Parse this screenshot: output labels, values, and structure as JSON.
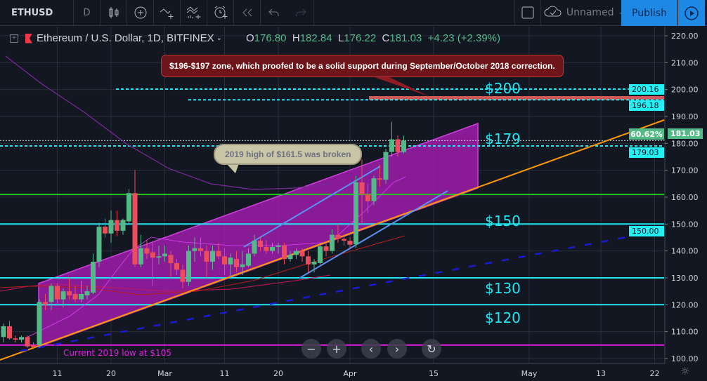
{
  "toolbar": {
    "symbol": "ETHUSD",
    "interval": "D",
    "icons": [
      "candles-icon",
      "add-indicator-icon",
      "compare-icon",
      "indicators-icon",
      "alert-icon",
      "replay-icon",
      "undo-icon",
      "redo-icon"
    ],
    "layout_name": "Unnamed",
    "publish_label": "Publish"
  },
  "legend": {
    "title": "Ethereum / U.S. Dollar, 1D, BITFINEX",
    "o_label": "O",
    "o": "176.80",
    "h_label": "H",
    "h": "182.84",
    "l_label": "L",
    "l": "176.22",
    "c_label": "C",
    "c": "181.03",
    "change": "+4.23 (+2.39%)"
  },
  "colors": {
    "up": "#53b987",
    "down": "#eb4d5c",
    "background": "#131722",
    "publish": "#1e88e5",
    "channel": "#a41cb0",
    "level": "#22e6f0"
  },
  "annotations": {
    "red_callout": "$196-$197 zone, which proofed to be a solid support during September/October 2018 correction.",
    "beige_callout": "2019 high of $161.5 was broken",
    "low_note": "Current 2019 low at $105",
    "levels": [
      {
        "label": "$200",
        "price": 200.16
      },
      {
        "label": "$179",
        "price": 179.03
      },
      {
        "label": "$150",
        "price": 150
      },
      {
        "label": "$130",
        "price": 130
      },
      {
        "label": "$120",
        "price": 120
      }
    ]
  },
  "price_badges": {
    "p200": "200.16",
    "p196": "196.18",
    "last": "181.03",
    "p179": "179.03",
    "p150": "150.00",
    "pct": "60.62%"
  },
  "chart_data": {
    "type": "candlestick",
    "ylim": [
      98,
      224
    ],
    "y_ticks": [
      "220.00",
      "210.00",
      "200.00",
      "190.00",
      "180.00",
      "170.00",
      "160.00",
      "150.00",
      "140.00",
      "130.00",
      "120.00",
      "110.00",
      "100.00"
    ],
    "x_ticks": [
      {
        "label": "11",
        "date": "2019-02-11"
      },
      {
        "label": "20",
        "date": "2019-02-20"
      },
      {
        "label": "Mar",
        "date": "2019-03-01"
      },
      {
        "label": "11",
        "date": "2019-03-11"
      },
      {
        "label": "20",
        "date": "2019-03-20"
      },
      {
        "label": "Apr",
        "date": "2019-04-01"
      },
      {
        "label": "15",
        "date": "2019-04-15"
      },
      {
        "label": "May",
        "date": "2019-05-01"
      },
      {
        "label": "13",
        "date": "2019-05-13"
      },
      {
        "label": "22",
        "date": "2019-05-22"
      }
    ],
    "grid": true,
    "horizontal_lines": [
      {
        "price": 200.16,
        "style": "dashed",
        "color": "#22e6f0"
      },
      {
        "price": 196.18,
        "style": "dashed",
        "color": "#22e6f0"
      },
      {
        "price": 181.03,
        "style": "dotted",
        "color": "#cfd2dc"
      },
      {
        "price": 179.03,
        "style": "dashed",
        "color": "#22e6f0"
      },
      {
        "price": 161,
        "style": "solid",
        "color": "#22c51e"
      },
      {
        "price": 150,
        "style": "solid",
        "color": "#22e6f0"
      },
      {
        "price": 130,
        "style": "solid",
        "color": "#22e6f0"
      },
      {
        "price": 120,
        "style": "solid",
        "color": "#22e6f0"
      },
      {
        "price": 105,
        "style": "solid",
        "color": "#e01ee0"
      }
    ],
    "candles": [
      [
        "2019-02-02",
        108,
        113,
        106,
        112
      ],
      [
        "2019-02-03",
        112,
        114,
        107,
        107.5
      ],
      [
        "2019-02-04",
        107.5,
        108.5,
        106,
        107
      ],
      [
        "2019-02-05",
        107,
        108.5,
        106,
        108
      ],
      [
        "2019-02-06",
        108,
        108.5,
        104,
        104.5
      ],
      [
        "2019-02-07",
        105,
        106,
        103.5,
        104.2
      ],
      [
        "2019-02-08",
        105,
        122,
        104,
        121
      ],
      [
        "2019-02-09",
        121,
        124,
        118,
        120
      ],
      [
        "2019-02-10",
        121,
        128,
        118,
        127
      ],
      [
        "2019-02-11",
        127,
        128,
        120,
        122
      ],
      [
        "2019-02-12",
        122,
        126,
        119,
        125
      ],
      [
        "2019-02-13",
        125,
        130,
        122,
        123.5
      ],
      [
        "2019-02-14",
        124,
        127,
        121,
        122
      ],
      [
        "2019-02-15",
        122,
        129,
        121,
        124
      ],
      [
        "2019-02-16",
        123.5,
        127,
        122,
        125
      ],
      [
        "2019-02-17",
        124.5,
        139,
        124,
        136
      ],
      [
        "2019-02-18",
        136,
        150.5,
        134,
        149
      ],
      [
        "2019-02-19",
        149,
        152,
        145,
        146.5
      ],
      [
        "2019-02-20",
        146.5,
        155,
        143,
        151.5
      ],
      [
        "2019-02-21",
        151.5,
        155,
        145.5,
        147.5
      ],
      [
        "2019-02-22",
        147.5,
        152,
        146,
        151.5
      ],
      [
        "2019-02-23",
        151,
        163,
        150,
        161.5
      ],
      [
        "2019-02-24",
        161.5,
        170,
        134,
        135
      ],
      [
        "2019-02-25",
        135,
        146,
        134,
        141
      ],
      [
        "2019-02-26",
        141,
        144,
        137,
        139
      ],
      [
        "2019-02-27",
        139.5,
        143,
        127,
        137.5
      ],
      [
        "2019-02-28",
        137.5,
        142,
        135,
        138
      ],
      [
        "2019-03-01",
        138,
        142,
        136,
        139
      ],
      [
        "2019-03-02",
        138.5,
        140,
        130,
        135.5
      ],
      [
        "2019-03-03",
        135.5,
        137,
        131,
        133
      ],
      [
        "2019-03-04",
        133,
        135,
        126,
        128.5
      ],
      [
        "2019-03-05",
        128.5,
        142,
        127,
        140
      ],
      [
        "2019-03-06",
        140,
        145,
        136,
        141
      ],
      [
        "2019-03-07",
        141,
        145,
        138,
        140
      ],
      [
        "2019-03-08",
        140,
        142,
        130,
        136
      ],
      [
        "2019-03-09",
        136,
        142,
        133,
        140
      ],
      [
        "2019-03-10",
        140,
        143,
        137,
        138
      ],
      [
        "2019-03-11",
        138,
        141,
        131,
        135
      ],
      [
        "2019-03-12",
        135,
        139,
        130,
        137.5
      ],
      [
        "2019-03-13",
        137,
        140,
        132,
        134
      ],
      [
        "2019-03-14",
        134,
        140,
        131,
        135
      ],
      [
        "2019-03-15",
        134.5,
        141,
        134,
        139
      ],
      [
        "2019-03-16",
        139,
        146,
        138,
        143.8
      ],
      [
        "2019-03-17",
        143.8,
        145,
        140,
        141.5
      ],
      [
        "2019-03-18",
        141.5,
        144,
        139,
        140
      ],
      [
        "2019-03-19",
        140,
        143,
        139,
        141.5
      ],
      [
        "2019-03-20",
        141.5,
        143,
        139,
        142
      ],
      [
        "2019-03-21",
        142,
        143,
        135,
        137
      ],
      [
        "2019-03-22",
        137,
        140,
        136,
        138.5
      ],
      [
        "2019-03-23",
        138.5,
        141,
        137,
        140
      ],
      [
        "2019-03-24",
        140,
        141,
        136,
        138
      ],
      [
        "2019-03-25",
        138,
        140,
        132,
        135
      ],
      [
        "2019-03-26",
        135,
        137,
        132,
        136
      ],
      [
        "2019-03-27",
        135.5,
        143,
        135,
        141.7
      ],
      [
        "2019-03-28",
        141.7,
        143,
        138,
        140
      ],
      [
        "2019-03-29",
        140,
        148,
        139,
        146
      ],
      [
        "2019-03-30",
        146,
        150,
        143,
        144.5
      ],
      [
        "2019-03-31",
        144.5,
        146,
        142,
        143.8
      ],
      [
        "2019-04-01",
        143.8,
        145,
        141,
        142.3
      ],
      [
        "2019-04-02",
        142.5,
        168,
        141,
        165.5
      ],
      [
        "2019-04-03",
        165.5,
        174,
        150,
        161
      ],
      [
        "2019-04-04",
        161,
        165,
        154,
        158.5
      ],
      [
        "2019-04-05",
        158.5,
        168,
        157,
        167
      ],
      [
        "2019-04-06",
        167,
        172,
        164,
        166.5
      ],
      [
        "2019-04-07",
        166.5,
        178,
        165,
        176.8
      ],
      [
        "2019-04-08",
        176.8,
        188,
        175,
        181.5
      ],
      [
        "2019-04-09",
        181.5,
        183,
        175,
        176.8
      ],
      [
        "2019-04-10",
        176.8,
        182.84,
        176.22,
        181.03
      ]
    ]
  }
}
